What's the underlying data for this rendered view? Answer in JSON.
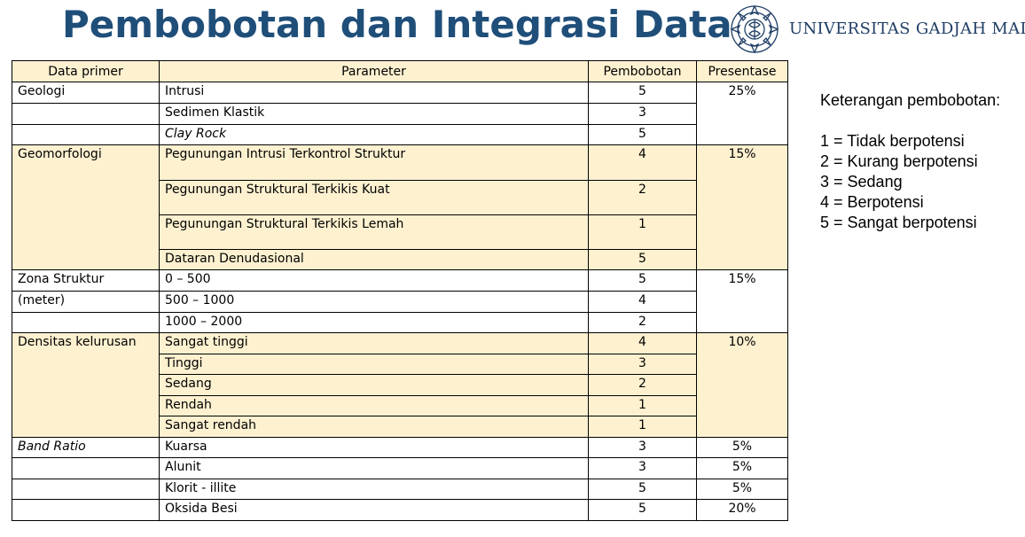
{
  "title": "Pembobotan dan Integrasi Data",
  "logo": {
    "text": "UNIVERSITAS GADJAH MADA",
    "icon": "ugm-emblem-icon",
    "color": "#1f3e66"
  },
  "colors": {
    "title": "#1f4e79",
    "highlight": "#fdf1d0"
  },
  "table": {
    "headers": [
      "Data primer",
      "Parameter",
      "Pembobotan",
      "Presentase"
    ],
    "rows": [
      {
        "data_primer": "Geologi",
        "parameter": "Intrusi",
        "pembobotan": "5",
        "presentase": "25%"
      },
      {
        "data_primer": "",
        "parameter": "Sedimen Klastik",
        "pembobotan": "3",
        "presentase": ""
      },
      {
        "data_primer": "",
        "parameter": "Clay Rock",
        "pembobotan": "5",
        "presentase": ""
      },
      {
        "data_primer": "Geomorfologi",
        "parameter": "Pegunungan Intrusi Terkontrol Struktur",
        "pembobotan": "4",
        "presentase": "15%"
      },
      {
        "data_primer": "",
        "parameter": "Pegunungan Struktural Terkikis Kuat",
        "pembobotan": "2",
        "presentase": ""
      },
      {
        "data_primer": "",
        "parameter": "Pegunungan Struktural Terkikis Lemah",
        "pembobotan": "1",
        "presentase": ""
      },
      {
        "data_primer": "",
        "parameter": "Dataran Denudasional",
        "pembobotan": "5",
        "presentase": ""
      },
      {
        "data_primer": "Zona Struktur",
        "parameter": "0 – 500",
        "pembobotan": "5",
        "presentase": "15%"
      },
      {
        "data_primer": "(meter)",
        "parameter": "500 – 1000",
        "pembobotan": "4",
        "presentase": ""
      },
      {
        "data_primer": "",
        "parameter": "1000 – 2000",
        "pembobotan": "2",
        "presentase": ""
      },
      {
        "data_primer": "Densitas kelurusan",
        "parameter": "Sangat tinggi",
        "pembobotan": "4",
        "presentase": "10%"
      },
      {
        "data_primer": "",
        "parameter": "Tinggi",
        "pembobotan": "3",
        "presentase": ""
      },
      {
        "data_primer": "",
        "parameter": "Sedang",
        "pembobotan": "2",
        "presentase": ""
      },
      {
        "data_primer": "",
        "parameter": "Rendah",
        "pembobotan": "1",
        "presentase": ""
      },
      {
        "data_primer": "",
        "parameter": "Sangat rendah",
        "pembobotan": "1",
        "presentase": ""
      },
      {
        "data_primer": "Band Ratio",
        "parameter": "Kuarsa",
        "pembobotan": "3",
        "presentase": "5%"
      },
      {
        "data_primer": "",
        "parameter": "Alunit",
        "pembobotan": "3",
        "presentase": "5%"
      },
      {
        "data_primer": "",
        "parameter": "Klorit - illite",
        "pembobotan": "5",
        "presentase": "5%"
      },
      {
        "data_primer": "",
        "parameter": "Oksida Besi",
        "pembobotan": "5",
        "presentase": "20%"
      }
    ]
  },
  "legend": {
    "title": "Keterangan pembobotan:",
    "items": [
      "1 = Tidak berpotensi",
      "2 = Kurang berpotensi",
      "3 = Sedang",
      "4 = Berpotensi",
      "5 = Sangat berpotensi"
    ]
  }
}
